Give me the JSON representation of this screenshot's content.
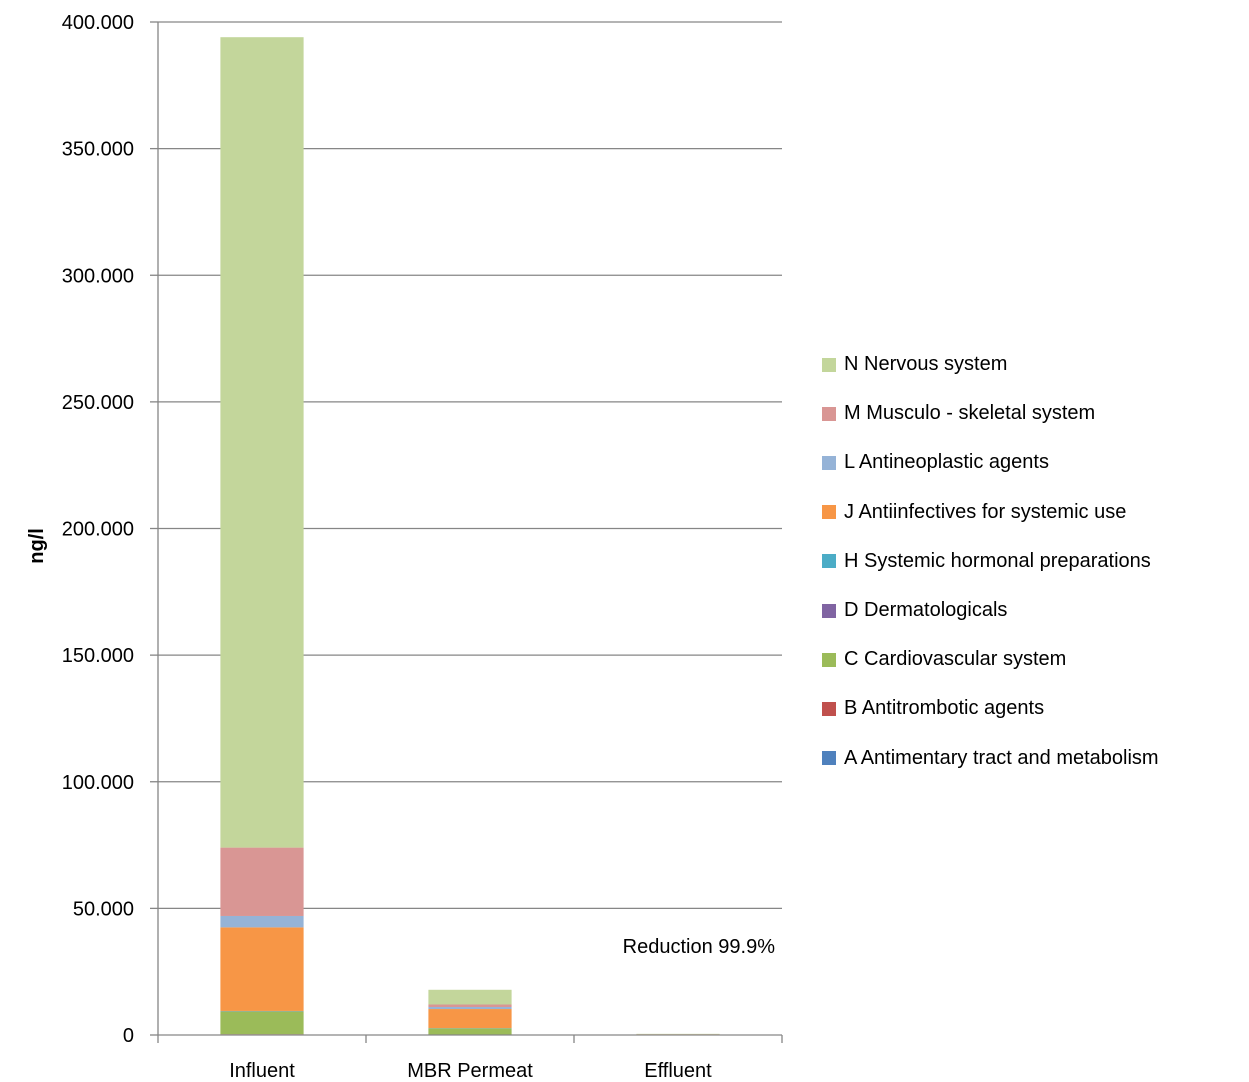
{
  "chart_data": {
    "type": "bar",
    "stacked": true,
    "categories": [
      "Influent",
      "MBR Permeat",
      "Effluent"
    ],
    "ylabel": "ng/l",
    "xlabel": "",
    "ylim": [
      0,
      400000
    ],
    "yticks": [
      {
        "value": 0,
        "label": "0"
      },
      {
        "value": 50000,
        "label": "50.000"
      },
      {
        "value": 100000,
        "label": "100.000"
      },
      {
        "value": 150000,
        "label": "150.000"
      },
      {
        "value": 200000,
        "label": "200.000"
      },
      {
        "value": 250000,
        "label": "250.000"
      },
      {
        "value": 300000,
        "label": "300.000"
      },
      {
        "value": 350000,
        "label": "350.000"
      },
      {
        "value": 400000,
        "label": "400.000"
      }
    ],
    "grid": true,
    "legend_position": "right",
    "annotation": "Reduction  99.9%",
    "series": [
      {
        "name": "A Antimentary tract and metabolism",
        "color": "#4f81bd",
        "values": [
          200,
          100,
          10
        ]
      },
      {
        "name": "B Antitrombotic agents",
        "color": "#c0504d",
        "values": [
          100,
          50,
          5
        ]
      },
      {
        "name": "C Cardiovascular system",
        "color": "#9bbb59",
        "values": [
          9000,
          2500,
          150
        ]
      },
      {
        "name": "D Dermatologicals",
        "color": "#8064a2",
        "values": [
          100,
          50,
          5
        ]
      },
      {
        "name": "H Systemic hormonal preparations",
        "color": "#4bacc6",
        "values": [
          100,
          50,
          5
        ]
      },
      {
        "name": "J Antiinfectives for systemic use",
        "color": "#f79646",
        "values": [
          33000,
          7500,
          100
        ]
      },
      {
        "name": "L Antineoplastic agents",
        "color": "#95b3d7",
        "values": [
          4500,
          800,
          10
        ]
      },
      {
        "name": "M Musculo - skeletal system",
        "color": "#d99694",
        "values": [
          27000,
          1000,
          20
        ]
      },
      {
        "name": "N Nervous system",
        "color": "#c3d69b",
        "values": [
          320000,
          5800,
          150
        ]
      }
    ]
  }
}
